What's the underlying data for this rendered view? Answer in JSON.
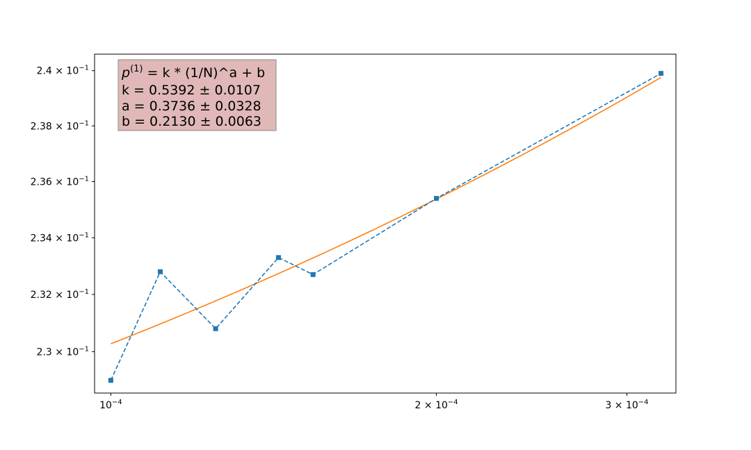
{
  "chart_data": {
    "type": "line",
    "xscale": "log",
    "yscale": "log",
    "xlim": [
      9.66e-05,
      0.000333
    ],
    "ylim": [
      0.22856,
      0.2406
    ],
    "grid": false,
    "x_ticks": [
      {
        "value": 0.0001,
        "mantissa": "",
        "exponent": "−4"
      },
      {
        "value": 0.0002,
        "mantissa": "2",
        "exponent": "−4"
      },
      {
        "value": 0.0003,
        "mantissa": "3",
        "exponent": "−4"
      }
    ],
    "y_ticks": [
      {
        "value": 0.23,
        "mantissa": "2.3",
        "exponent": "−1"
      },
      {
        "value": 0.232,
        "mantissa": "2.32",
        "exponent": "−1"
      },
      {
        "value": 0.234,
        "mantissa": "2.34",
        "exponent": "−1"
      },
      {
        "value": 0.236,
        "mantissa": "2.36",
        "exponent": "−1"
      },
      {
        "value": 0.238,
        "mantissa": "2.38",
        "exponent": "−1"
      },
      {
        "value": 0.24,
        "mantissa": "2.4",
        "exponent": "−1"
      }
    ],
    "series": [
      {
        "style": "dashed-square-markers",
        "color": "#1f77b4",
        "x": [
          0.0001,
          0.0001111,
          0.000125,
          0.0001429,
          0.0001538,
          0.0002,
          0.0003226
        ],
        "y": [
          0.229,
          0.2328,
          0.2308,
          0.2333,
          0.2327,
          0.2354,
          0.2399
        ]
      },
      {
        "style": "solid",
        "color": "#ff7f0e",
        "fit": {
          "k": 0.5392,
          "a": 0.3736,
          "b": 0.213
        },
        "x_range": [
          0.0001,
          0.0003226
        ]
      }
    ],
    "annotation": {
      "line1_main": "p",
      "line1_sup": "(1)",
      "line1_rest": " = k * (1/N)^a + b",
      "line2": "k = 0.5392 ± 0.0107",
      "line3": "a = 0.3736 ± 0.0328",
      "line4": "b = 0.2130 ± 0.0063",
      "box_color": "#e0b8b8"
    }
  }
}
